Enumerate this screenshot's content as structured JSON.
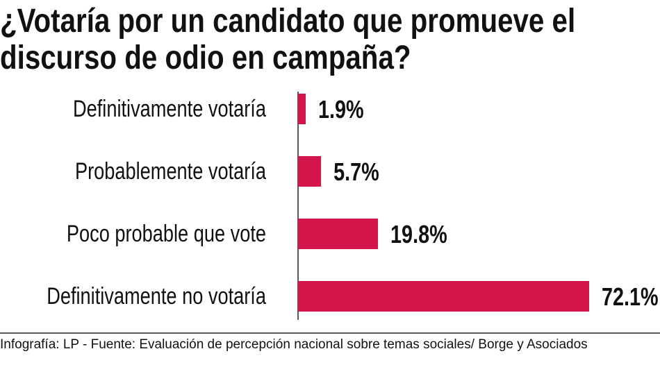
{
  "chart_data": {
    "type": "bar",
    "orientation": "horizontal",
    "title": "¿Votaría por un candidato que promueve el discurso de odio en campaña?",
    "categories": [
      "Definitivamente votaría",
      "Probablemente votaría",
      "Poco probable que vote",
      "Definitivamente no votaría"
    ],
    "values": [
      1.9,
      5.7,
      19.8,
      72.1
    ],
    "value_labels": [
      "1.9%",
      "5.7%",
      "19.8%",
      "72.1%"
    ],
    "color": "#d4154a",
    "footer": "Infografía: LP - Fuente: Evaluación de percepción nacional sobre temas sociales/ Borge y Asociados"
  }
}
